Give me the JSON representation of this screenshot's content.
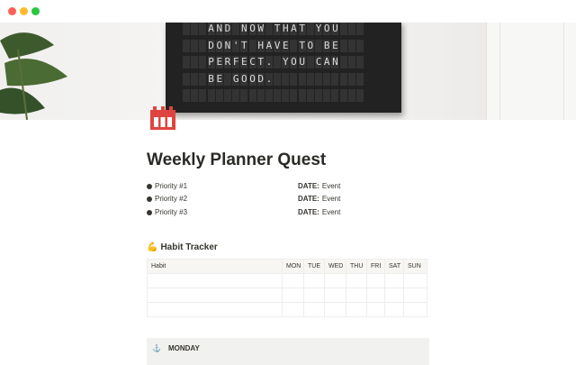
{
  "window": {
    "controls": {
      "close_color": "#ff5f57",
      "minimize_color": "#febc2e",
      "maximize_color": "#28c840"
    }
  },
  "cover": {
    "board_lines": [
      "AND NOW THAT YOU",
      "DON'T HAVE TO BE",
      "PERFECT. YOU CAN",
      "BE GOOD."
    ],
    "icon": "calendar-icon",
    "icon_color": "#e0443e"
  },
  "page": {
    "title": "Weekly Planner Quest"
  },
  "priorities": [
    {
      "label": "Priority #1",
      "date_label": "DATE:",
      "date_value": "Event"
    },
    {
      "label": "Priority #2",
      "date_label": "DATE:",
      "date_value": "Event"
    },
    {
      "label": "Priority #3",
      "date_label": "DATE:",
      "date_value": "Event"
    }
  ],
  "habit_tracker": {
    "icon": "💪",
    "title": "Habit Tracker",
    "columns": [
      "Habit",
      "MON",
      "TUE",
      "WED",
      "THU",
      "FRI",
      "SAT",
      "SUN"
    ],
    "rows": [
      [
        "",
        "",
        "",
        "",
        "",
        "",
        "",
        ""
      ],
      [
        "",
        "",
        "",
        "",
        "",
        "",
        "",
        ""
      ],
      [
        "",
        "",
        "",
        "",
        "",
        "",
        "",
        ""
      ]
    ]
  },
  "days": [
    {
      "icon": "⚓",
      "label": "MONDAY"
    }
  ]
}
